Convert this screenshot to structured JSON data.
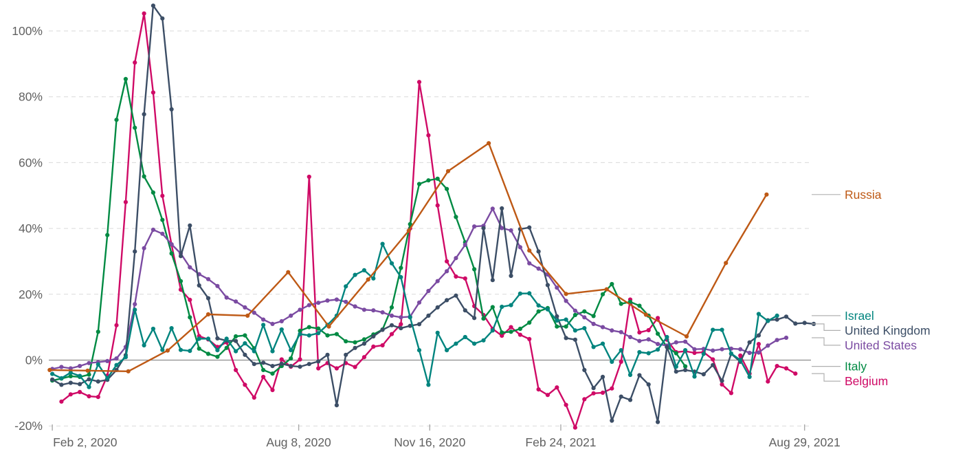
{
  "chart_data": {
    "type": "line",
    "title": "",
    "xlabel": "",
    "ylabel": "",
    "unit": "%",
    "grid": "horizontal-dashed",
    "zero_line": true,
    "legend_position": "right-edge-labels",
    "x_domain": [
      "2020-02-02",
      "2021-09-05"
    ],
    "ylim": [
      -22,
      110
    ],
    "y_ticks": [
      {
        "value": 100,
        "label": "100%"
      },
      {
        "value": 80,
        "label": "80%"
      },
      {
        "value": 60,
        "label": "60%"
      },
      {
        "value": 40,
        "label": "40%"
      },
      {
        "value": 20,
        "label": "20%"
      },
      {
        "value": 0,
        "label": "0%"
      },
      {
        "value": -20,
        "label": "-20%"
      }
    ],
    "x_ticks": [
      {
        "date": "2020-02-02",
        "label": "Feb 2, 2020"
      },
      {
        "date": "2020-08-08",
        "label": "Aug 8, 2020"
      },
      {
        "date": "2020-11-16",
        "label": "Nov 16, 2020"
      },
      {
        "date": "2021-02-24",
        "label": "Feb 24, 2021"
      },
      {
        "date": "2021-08-29",
        "label": "Aug 29, 2021"
      }
    ],
    "series": [
      {
        "name": "Russia",
        "color": "#BE5915",
        "cadence": "monthly",
        "points": [
          [
            "2020-01-31",
            -3.0
          ],
          [
            "2020-02-29",
            -3.2
          ],
          [
            "2020-03-31",
            -3.4
          ],
          [
            "2020-04-30",
            2.9
          ],
          [
            "2020-05-31",
            13.9
          ],
          [
            "2020-06-30",
            13.5
          ],
          [
            "2020-07-31",
            26.7
          ],
          [
            "2020-08-31",
            10.2
          ],
          [
            "2020-09-30",
            24.5
          ],
          [
            "2020-10-31",
            39.3
          ],
          [
            "2020-11-30",
            57.4
          ],
          [
            "2020-12-31",
            65.9
          ],
          [
            "2021-01-31",
            33.3
          ],
          [
            "2021-02-28",
            20.1
          ],
          [
            "2021-03-31",
            21.5
          ],
          [
            "2021-04-30",
            13.8
          ],
          [
            "2021-05-31",
            7.2
          ],
          [
            "2021-06-30",
            29.5
          ],
          [
            "2021-07-31",
            50.3
          ]
        ]
      },
      {
        "name": "Israel",
        "color": "#00847E",
        "cadence": "weekly",
        "start": "2020-02-02",
        "step_days": 7,
        "values": [
          -4.2,
          -5.5,
          -3.8,
          -4.8,
          -8.2,
          -1.3,
          -5.5,
          -1.5,
          0.9,
          15.3,
          4.5,
          9.5,
          3.1,
          9.7,
          3.1,
          2.8,
          6.5,
          6.5,
          3.0,
          6.5,
          2.7,
          5.1,
          2.7,
          10.7,
          2.7,
          9.3,
          3.0,
          7.9,
          7.5,
          8.2,
          10.7,
          13.5,
          22.4,
          25.9,
          27.3,
          24.8,
          35.3,
          29.4,
          25.2,
          13.0,
          3.0,
          -7.5,
          8.3,
          3.0,
          5.0,
          7.0,
          5.0,
          6.0,
          9.0,
          16.2,
          16.7,
          20.2,
          20.3,
          16.6,
          15.4,
          12.0,
          12.3,
          9.0,
          9.7,
          4.0,
          5.0,
          -0.5,
          3.0,
          -4.5,
          2.4,
          2.1,
          3.2,
          7.0,
          -2.0,
          3.0,
          -5.0,
          1.9,
          9.2,
          9.2,
          2.0,
          0.0,
          -5.1,
          14.0,
          11.9,
          13.5
        ]
      },
      {
        "name": "United Kingdom",
        "color": "#3C4E66",
        "cadence": "weekly",
        "start": "2020-02-02",
        "step_days": 7,
        "values": [
          -5.9,
          -7.5,
          -6.9,
          -7.3,
          -5.8,
          -6.5,
          -6.0,
          -3.0,
          1.5,
          33.0,
          74.7,
          107.7,
          103.8,
          76.2,
          31.6,
          40.9,
          22.7,
          18.8,
          6.6,
          5.9,
          5.8,
          1.6,
          -1.2,
          -0.8,
          -1.8,
          -1.1,
          -1.8,
          -2.0,
          -1.2,
          -0.4,
          1.6,
          -13.7,
          1.6,
          3.7,
          5.0,
          7.2,
          9.2,
          10.6,
          9.7,
          10.4,
          10.9,
          13.5,
          16.0,
          18.2,
          19.6,
          15.1,
          12.8,
          40.1,
          24.3,
          46.1,
          25.6,
          39.8,
          40.3,
          33.0,
          22.8,
          13.3,
          6.7,
          6.2,
          -3.0,
          -8.5,
          -5.1,
          -18.4,
          -11.1,
          -12.1,
          -4.6,
          -7.4,
          -18.8,
          4.0,
          -3.5,
          -3.0,
          -3.5,
          -4.3,
          -1.5,
          -6.3,
          1.9,
          -0.5,
          5.4,
          7.5,
          12.1,
          12.3,
          13.2,
          11.1,
          11.3,
          11.0
        ]
      },
      {
        "name": "United States",
        "color": "#7B4BA2",
        "cadence": "weekly",
        "start": "2020-02-02",
        "step_days": 7,
        "values": [
          -2.7,
          -2.1,
          -2.5,
          -1.8,
          -0.9,
          -0.6,
          -0.3,
          0.5,
          4.0,
          17.0,
          34.0,
          39.6,
          38.4,
          35.2,
          32.4,
          28.2,
          26.1,
          24.6,
          22.5,
          19.0,
          17.8,
          16.0,
          14.4,
          12.3,
          11.0,
          11.8,
          13.5,
          15.3,
          16.7,
          17.4,
          18.1,
          18.4,
          17.7,
          16.3,
          15.3,
          15.1,
          14.5,
          13.5,
          13.0,
          13.2,
          17.5,
          21.0,
          24.0,
          27.0,
          31.0,
          35.0,
          40.6,
          40.8,
          46.0,
          40.1,
          39.4,
          34.3,
          29.4,
          27.8,
          26.0,
          22.0,
          18.0,
          15.0,
          13.0,
          11.0,
          10.0,
          9.0,
          8.5,
          7.0,
          5.8,
          6.3,
          4.9,
          4.4,
          5.4,
          5.6,
          3.3,
          3.4,
          2.9,
          3.3,
          3.5,
          3.3,
          2.2,
          2.3,
          4.4,
          6.1,
          6.8
        ]
      },
      {
        "name": "Italy",
        "color": "#008A43",
        "cadence": "weekly",
        "start": "2020-02-02",
        "step_days": 7,
        "values": [
          -6.2,
          -5.6,
          -4.9,
          -5.1,
          -4.4,
          8.6,
          38.0,
          73.0,
          85.4,
          70.6,
          55.8,
          50.9,
          42.6,
          32.4,
          24.0,
          13.0,
          3.5,
          1.9,
          1.0,
          3.7,
          7.2,
          7.5,
          3.6,
          -3.0,
          -4.1,
          -1.8,
          0.5,
          8.9,
          10.0,
          9.6,
          7.5,
          7.9,
          5.7,
          5.4,
          6.3,
          7.8,
          9.3,
          16.0,
          28.0,
          41.3,
          53.5,
          54.6,
          55.1,
          52.0,
          43.5,
          35.8,
          27.6,
          12.6,
          16.1,
          8.4,
          8.6,
          9.5,
          11.4,
          14.8,
          15.8,
          10.2,
          10.2,
          13.7,
          14.8,
          13.4,
          20.0,
          23.1,
          17.1,
          17.7,
          16.5,
          13.5,
          8.0,
          4.0,
          2.1,
          -1.9
        ]
      },
      {
        "name": "Belgium",
        "color": "#CF0A66",
        "cadence": "weekly",
        "start": "2020-02-09",
        "step_days": 7,
        "values": [
          -12.6,
          -10.4,
          -9.7,
          -11.0,
          -11.2,
          -4.7,
          10.6,
          48.0,
          90.4,
          105.3,
          81.3,
          49.9,
          35.1,
          21.4,
          18.3,
          7.3,
          6.3,
          4.0,
          5.4,
          -3.0,
          -7.5,
          -11.4,
          -5.1,
          -9.1,
          0.2,
          -2.0,
          0.2,
          55.7,
          -2.5,
          -0.9,
          -2.5,
          -0.9,
          -2.1,
          0.9,
          4.1,
          4.5,
          7.9,
          10.9,
          40.0,
          84.5,
          68.3,
          47.0,
          30.0,
          25.4,
          24.8,
          16.4,
          13.7,
          9.5,
          7.4,
          10.0,
          7.7,
          6.4,
          -8.9,
          -10.6,
          -8.3,
          -13.6,
          -20.5,
          -11.9,
          -10.1,
          -9.9,
          -8.6,
          -0.5,
          18.4,
          8.4,
          9.1,
          12.8,
          6.2,
          2.4,
          2.7,
          2.2,
          2.4,
          0.2,
          -7.4,
          -10.0,
          1.4,
          -4.1,
          4.9,
          -6.5,
          -1.8,
          -2.5,
          -4.1
        ]
      }
    ],
    "colors": {
      "Russia": "#BE5915",
      "Israel": "#00847E",
      "United Kingdom": "#3C4E66",
      "United States": "#7B4BA2",
      "Italy": "#008A43",
      "Belgium": "#CF0A66",
      "grid": "#d9d9d9",
      "zero_line": "#8c8c8c",
      "axis_text": "#616161",
      "label_connector": "#b0b0b0"
    }
  }
}
